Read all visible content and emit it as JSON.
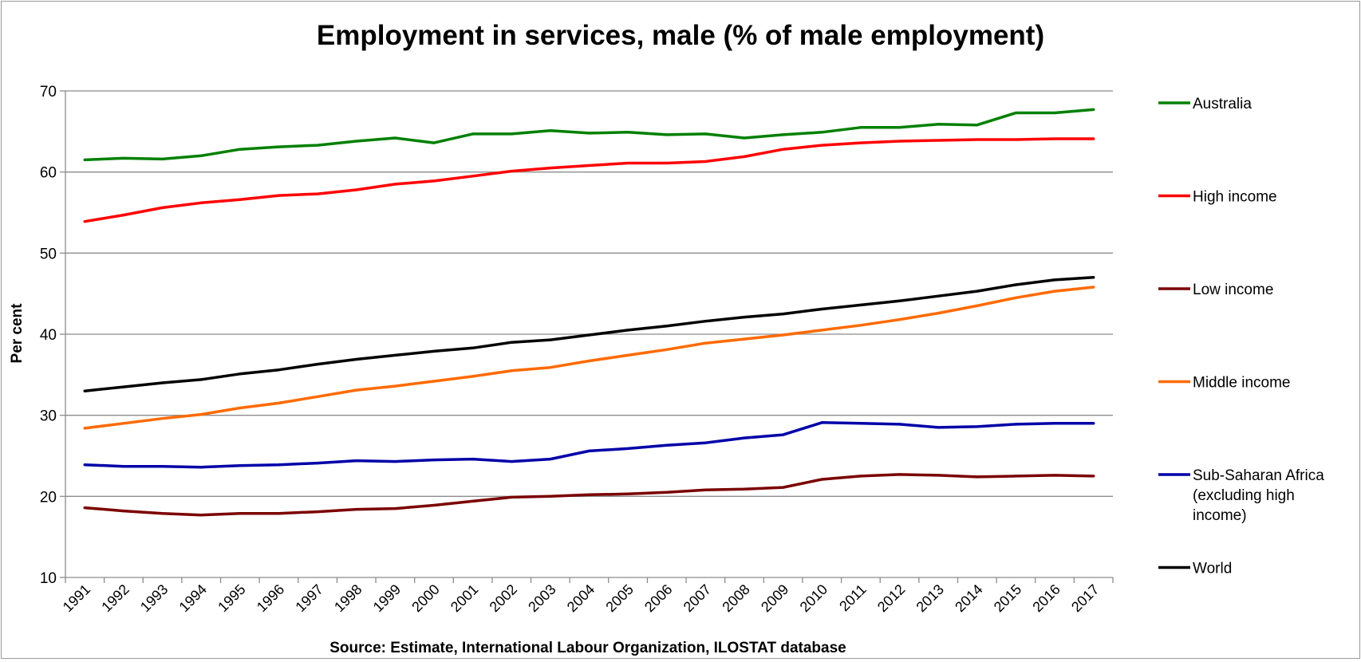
{
  "chart_data": {
    "type": "line",
    "title": "Employment in services, male (% of male employment)",
    "ylabel": "Per cent",
    "xlabel": "",
    "source": "Source: Estimate, International Labour Organization, ILOSTAT database",
    "ylim": [
      10,
      70
    ],
    "yticks": [
      10,
      20,
      30,
      40,
      50,
      60,
      70
    ],
    "grid": true,
    "legend_position": "right",
    "categories": [
      "1991",
      "1992",
      "1993",
      "1994",
      "1995",
      "1996",
      "1997",
      "1998",
      "1999",
      "2000",
      "2001",
      "2002",
      "2003",
      "2004",
      "2005",
      "2006",
      "2007",
      "2008",
      "2009",
      "2010",
      "2011",
      "2012",
      "2013",
      "2014",
      "2015",
      "2016",
      "2017"
    ],
    "series": [
      {
        "name": "Australia",
        "color": "#008000",
        "values": [
          61.5,
          61.7,
          61.6,
          62.0,
          62.8,
          63.1,
          63.3,
          63.8,
          64.2,
          63.6,
          64.7,
          64.7,
          65.1,
          64.8,
          64.9,
          64.6,
          64.7,
          64.2,
          64.6,
          64.9,
          65.5,
          65.5,
          65.9,
          65.8,
          67.3,
          67.3,
          67.7
        ]
      },
      {
        "name": "High income",
        "color": "#ff0000",
        "values": [
          53.9,
          54.7,
          55.6,
          56.2,
          56.6,
          57.1,
          57.3,
          57.8,
          58.5,
          58.9,
          59.5,
          60.1,
          60.5,
          60.8,
          61.1,
          61.1,
          61.3,
          61.9,
          62.8,
          63.3,
          63.6,
          63.8,
          63.9,
          64.0,
          64.0,
          64.1,
          64.1
        ]
      },
      {
        "name": "Low income",
        "color": "#7b0000",
        "values": [
          18.6,
          18.2,
          17.9,
          17.7,
          17.9,
          17.9,
          18.1,
          18.4,
          18.5,
          18.9,
          19.4,
          19.9,
          20.0,
          20.2,
          20.3,
          20.5,
          20.8,
          20.9,
          21.1,
          22.1,
          22.5,
          22.7,
          22.6,
          22.4,
          22.5,
          22.6,
          22.5
        ]
      },
      {
        "name": "Middle income",
        "color": "#ff6a00",
        "values": [
          28.4,
          29.0,
          29.6,
          30.1,
          30.9,
          31.5,
          32.3,
          33.1,
          33.6,
          34.2,
          34.8,
          35.5,
          35.9,
          36.7,
          37.4,
          38.1,
          38.9,
          39.4,
          39.9,
          40.5,
          41.1,
          41.8,
          42.6,
          43.5,
          44.5,
          45.3,
          45.8
        ]
      },
      {
        "name": "Sub-Saharan Africa (excluding high income)",
        "color": "#0000a8",
        "legend_lines": [
          "Sub-Saharan Africa",
          "(excluding high",
          "income)"
        ],
        "values": [
          23.9,
          23.7,
          23.7,
          23.6,
          23.8,
          23.9,
          24.1,
          24.4,
          24.3,
          24.5,
          24.6,
          24.3,
          24.6,
          25.6,
          25.9,
          26.3,
          26.6,
          27.2,
          27.6,
          29.1,
          29.0,
          28.9,
          28.5,
          28.6,
          28.9,
          29.0,
          29.0
        ]
      },
      {
        "name": "World",
        "color": "#000000",
        "values": [
          33.0,
          33.5,
          34.0,
          34.4,
          35.1,
          35.6,
          36.3,
          36.9,
          37.4,
          37.9,
          38.3,
          39.0,
          39.3,
          39.9,
          40.5,
          41.0,
          41.6,
          42.1,
          42.5,
          43.1,
          43.6,
          44.1,
          44.7,
          45.3,
          46.1,
          46.7,
          47.0
        ]
      }
    ]
  }
}
